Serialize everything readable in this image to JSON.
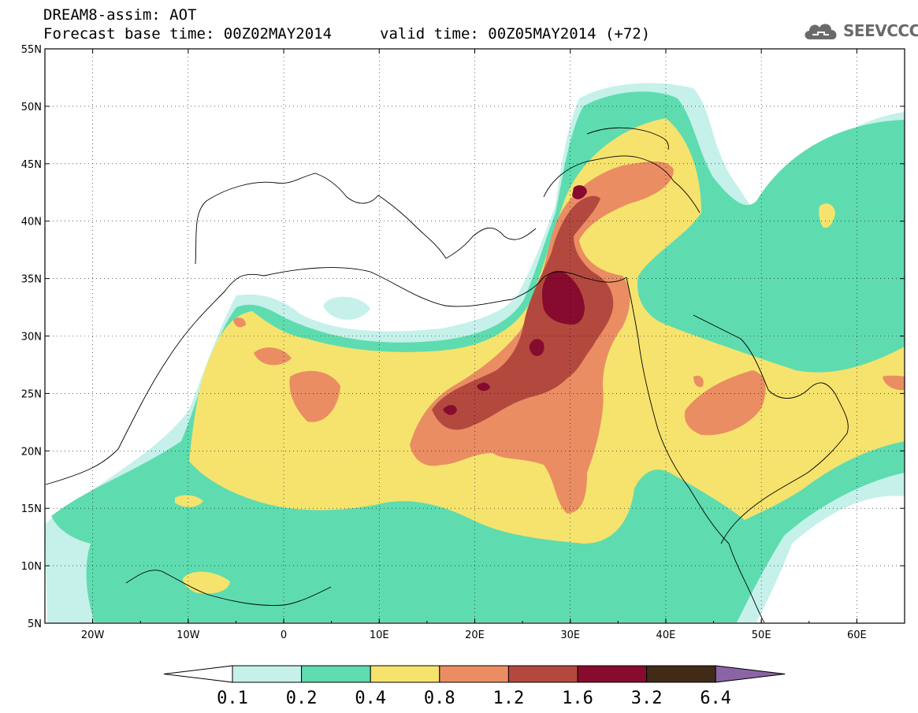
{
  "title": {
    "line1": "DREAM8-assim: AOT",
    "base_time": "Forecast base time: 00Z02MAY2014",
    "valid_time": "valid time: 00Z05MAY2014 (+72)"
  },
  "logo": {
    "text": "SEEVCCC",
    "icon": "cloud-icon"
  },
  "map": {
    "lon_range": [
      -25,
      65
    ],
    "lat_range": [
      5,
      55
    ],
    "lat_labels": [
      "55N",
      "50N",
      "45N",
      "40N",
      "35N",
      "30N",
      "25N",
      "20N",
      "15N",
      "10N",
      "5N"
    ],
    "lon_labels": [
      "20W",
      "10W",
      "0",
      "10E",
      "20E",
      "30E",
      "40E",
      "50E",
      "60E"
    ],
    "grid": "dotted"
  },
  "colorbar": {
    "labels": [
      "0.1",
      "0.2",
      "0.4",
      "0.8",
      "1.2",
      "1.6",
      "3.2",
      "6.4"
    ],
    "colors": [
      "#ffffff",
      "#c5f1ea",
      "#5edcb0",
      "#f6e36d",
      "#ea8d63",
      "#b3493e",
      "#870b2e",
      "#412b17",
      "#8b64a6"
    ]
  }
}
